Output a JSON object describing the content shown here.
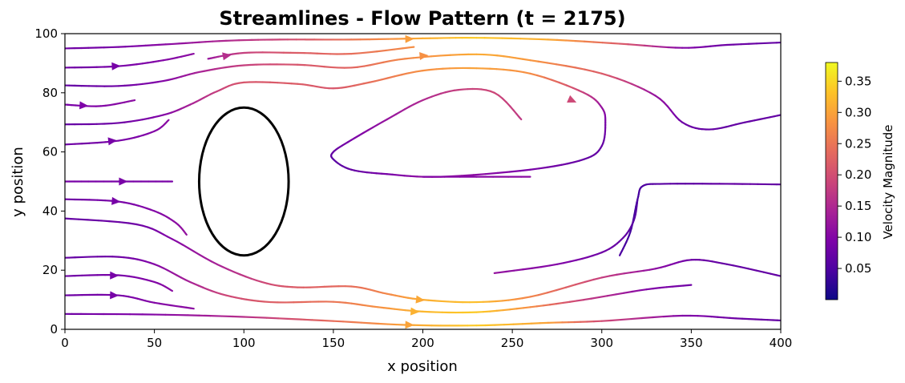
{
  "chart_data": {
    "type": "streamplot",
    "title": "Streamlines - Flow Pattern (t = 2175)",
    "xlabel": "x position",
    "ylabel": "y position",
    "xlim": [
      0,
      400
    ],
    "ylim": [
      0,
      100
    ],
    "xticks": [
      0,
      50,
      100,
      150,
      200,
      250,
      300,
      350,
      400
    ],
    "yticks": [
      0,
      20,
      40,
      60,
      80,
      100
    ],
    "grid": false,
    "colormap": "plasma",
    "colorbar": {
      "label": "Velocity Magnitude",
      "range": [
        0.0,
        0.38
      ],
      "ticks": [
        0.05,
        0.1,
        0.15,
        0.2,
        0.25,
        0.3,
        0.35
      ],
      "tick_labels": [
        "0.05",
        "0.10",
        "0.15",
        "0.20",
        "0.25",
        "0.30",
        "0.35"
      ]
    },
    "obstacle": {
      "shape": "ellipse",
      "center": [
        100,
        50
      ],
      "radius_x": 25,
      "radius_y": 25,
      "color": "#000000"
    },
    "streamlines": [
      {
        "points": [
          [
            0,
            95
          ],
          [
            30,
            95.5
          ],
          [
            60,
            96.5
          ],
          [
            90,
            97.6
          ],
          [
            120,
            98.0
          ],
          [
            160,
            98.0
          ],
          [
            200,
            98.4
          ],
          [
            230,
            98.6
          ],
          [
            270,
            98.0
          ],
          [
            310,
            96.6
          ],
          [
            345,
            95.2
          ],
          [
            370,
            96.2
          ],
          [
            400,
            97.0
          ]
        ],
        "speeds": [
          0.08,
          0.09,
          0.11,
          0.15,
          0.19,
          0.25,
          0.31,
          0.34,
          0.31,
          0.22,
          0.1,
          0.08,
          0.07
        ],
        "arrows": [
          [
            192,
            98.2
          ]
        ]
      },
      {
        "points": [
          [
            0,
            88.5
          ],
          [
            30,
            89
          ],
          [
            55,
            91
          ],
          [
            72,
            93.2
          ]
        ],
        "speeds": [
          0.08,
          0.09,
          0.1,
          0.11
        ],
        "arrows": [
          [
            28,
            89
          ]
        ]
      },
      {
        "points": [
          [
            80,
            91.5
          ],
          [
            100,
            93.5
          ],
          [
            130,
            93.5
          ],
          [
            160,
            93.2
          ],
          [
            195,
            95.5
          ]
        ],
        "speeds": [
          0.12,
          0.18,
          0.22,
          0.24,
          0.28
        ],
        "arrows": [
          [
            90,
            92.5
          ]
        ]
      },
      {
        "points": [
          [
            0,
            82.5
          ],
          [
            30,
            82.3
          ],
          [
            55,
            84
          ],
          [
            75,
            87
          ],
          [
            100,
            89.3
          ],
          [
            130,
            89.5
          ],
          [
            160,
            88.5
          ],
          [
            190,
            91.5
          ],
          [
            230,
            93
          ],
          [
            260,
            91
          ],
          [
            300,
            86.5
          ],
          [
            330,
            79
          ],
          [
            345,
            70
          ],
          [
            360,
            67.6
          ],
          [
            380,
            70
          ],
          [
            400,
            72.5
          ]
        ],
        "speeds": [
          0.07,
          0.08,
          0.1,
          0.14,
          0.18,
          0.21,
          0.23,
          0.27,
          0.31,
          0.29,
          0.22,
          0.12,
          0.08,
          0.07,
          0.07,
          0.07
        ],
        "arrows": [
          [
            200,
            92.5
          ]
        ]
      },
      {
        "points": [
          [
            0,
            76
          ],
          [
            20,
            75.5
          ],
          [
            39,
            77.5
          ]
        ],
        "speeds": [
          0.09,
          0.1,
          0.11
        ],
        "arrows": [
          [
            10,
            75.7
          ]
        ]
      },
      {
        "points": [
          [
            0,
            69.3
          ],
          [
            30,
            69.8
          ],
          [
            55,
            72.5
          ],
          [
            70,
            76
          ],
          [
            85,
            80.5
          ],
          [
            100,
            83.5
          ],
          [
            130,
            83
          ],
          [
            150,
            81.5
          ],
          [
            170,
            83.5
          ],
          [
            200,
            87.5
          ],
          [
            230,
            88.3
          ],
          [
            260,
            86.5
          ],
          [
            290,
            80
          ],
          [
            300,
            75
          ],
          [
            302,
            70
          ],
          [
            300,
            62
          ],
          [
            290,
            57.5
          ],
          [
            260,
            54
          ],
          [
            210,
            51.6
          ],
          [
            180,
            52.5
          ],
          [
            160,
            54
          ],
          [
            150,
            57.5
          ],
          [
            150,
            60
          ],
          [
            160,
            64
          ],
          [
            180,
            71
          ],
          [
            200,
            77.5
          ],
          [
            220,
            81
          ],
          [
            240,
            80
          ],
          [
            255,
            71
          ]
        ],
        "speeds": [
          0.07,
          0.08,
          0.1,
          0.14,
          0.18,
          0.21,
          0.22,
          0.21,
          0.24,
          0.28,
          0.3,
          0.28,
          0.18,
          0.12,
          0.09,
          0.07,
          0.07,
          0.09,
          0.12,
          0.09,
          0.07,
          0.06,
          0.07,
          0.09,
          0.12,
          0.15,
          0.18,
          0.19,
          0.17
        ],
        "arrows": [
          [
            283,
            77.5
          ]
        ]
      },
      {
        "points": [
          [
            0,
            62.5
          ],
          [
            30,
            63.8
          ],
          [
            50,
            67
          ],
          [
            58,
            70.8
          ]
        ],
        "speeds": [
          0.08,
          0.09,
          0.1,
          0.11
        ],
        "arrows": [
          [
            26,
            63.7
          ]
        ]
      },
      {
        "points": [
          [
            0,
            50
          ],
          [
            30,
            50
          ],
          [
            60,
            50
          ]
        ],
        "speeds": [
          0.09,
          0.09,
          0.09
        ],
        "arrows": [
          [
            32,
            50
          ]
        ]
      },
      {
        "points": [
          [
            0,
            44
          ],
          [
            30,
            43.2
          ],
          [
            50,
            40
          ],
          [
            62,
            36
          ],
          [
            68,
            32
          ]
        ],
        "speeds": [
          0.08,
          0.09,
          0.1,
          0.11,
          0.12
        ],
        "arrows": [
          [
            28,
            43.3
          ]
        ]
      },
      {
        "points": [
          [
            0,
            37.5
          ],
          [
            40,
            35.5
          ],
          [
            60,
            30.5
          ],
          [
            85,
            22
          ],
          [
            110,
            16
          ],
          [
            130,
            14.2
          ],
          [
            160,
            14.5
          ],
          [
            180,
            12
          ],
          [
            200,
            10
          ],
          [
            230,
            9.2
          ],
          [
            260,
            11
          ],
          [
            300,
            17.5
          ],
          [
            330,
            20.5
          ],
          [
            350,
            23.5
          ],
          [
            370,
            22
          ],
          [
            400,
            18
          ]
        ],
        "speeds": [
          0.07,
          0.08,
          0.1,
          0.14,
          0.19,
          0.22,
          0.24,
          0.27,
          0.31,
          0.33,
          0.27,
          0.18,
          0.11,
          0.08,
          0.07,
          0.07
        ],
        "arrows": [
          [
            198,
            10
          ]
        ]
      },
      {
        "points": [
          [
            0,
            24.2
          ],
          [
            30,
            24.5
          ],
          [
            50,
            22
          ],
          [
            70,
            16
          ],
          [
            90,
            11.5
          ],
          [
            115,
            9.2
          ],
          [
            150,
            9.3
          ],
          [
            175,
            7.5
          ],
          [
            200,
            6
          ],
          [
            230,
            5.8
          ],
          [
            260,
            7.5
          ],
          [
            290,
            10
          ],
          [
            325,
            13.5
          ],
          [
            350,
            15
          ]
        ],
        "speeds": [
          0.07,
          0.08,
          0.1,
          0.14,
          0.19,
          0.22,
          0.25,
          0.28,
          0.32,
          0.34,
          0.28,
          0.18,
          0.1,
          0.08
        ],
        "arrows": [
          [
            195,
            6
          ]
        ]
      },
      {
        "points": [
          [
            0,
            18
          ],
          [
            30,
            18.3
          ],
          [
            50,
            16
          ],
          [
            60,
            13
          ]
        ],
        "speeds": [
          0.08,
          0.09,
          0.1,
          0.11
        ],
        "arrows": [
          [
            27,
            18.2
          ]
        ]
      },
      {
        "points": [
          [
            0,
            11.5
          ],
          [
            30,
            11.5
          ],
          [
            50,
            9
          ],
          [
            72,
            7
          ]
        ],
        "speeds": [
          0.08,
          0.09,
          0.1,
          0.11
        ],
        "arrows": [
          [
            27,
            11.5
          ]
        ]
      },
      {
        "points": [
          [
            0,
            5.2
          ],
          [
            50,
            5
          ],
          [
            100,
            4.2
          ],
          [
            150,
            2.8
          ],
          [
            190,
            1.5
          ],
          [
            230,
            1.3
          ],
          [
            270,
            2.2
          ],
          [
            300,
            2.8
          ],
          [
            345,
            4.6
          ],
          [
            375,
            3.7
          ],
          [
            400,
            3
          ]
        ],
        "speeds": [
          0.08,
          0.1,
          0.16,
          0.24,
          0.3,
          0.34,
          0.3,
          0.2,
          0.1,
          0.08,
          0.07
        ],
        "arrows": [
          [
            192,
            1.5
          ]
        ]
      },
      {
        "points": [
          [
            200,
            51.6
          ],
          [
            260,
            51.6
          ]
        ],
        "speeds": [
          0.1,
          0.11
        ],
        "arrows": []
      },
      {
        "points": [
          [
            310,
            25
          ],
          [
            316,
            33
          ],
          [
            320,
            44
          ],
          [
            323,
            48.5
          ],
          [
            335,
            49.2
          ],
          [
            370,
            49.2
          ],
          [
            400,
            49
          ]
        ],
        "speeds": [
          0.05,
          0.04,
          0.04,
          0.05,
          0.06,
          0.07,
          0.07
        ],
        "arrows": []
      },
      {
        "points": [
          [
            240,
            19
          ],
          [
            275,
            22
          ],
          [
            300,
            26
          ],
          [
            312,
            31
          ],
          [
            318,
            37
          ],
          [
            320,
            44
          ]
        ],
        "speeds": [
          0.12,
          0.1,
          0.08,
          0.07,
          0.06,
          0.05
        ],
        "arrows": []
      }
    ]
  }
}
